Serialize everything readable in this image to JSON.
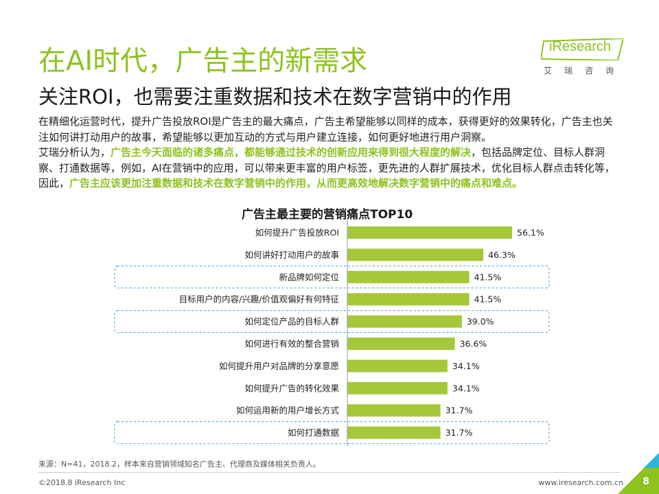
{
  "header": {
    "title": "在AI时代，广告主的新需求",
    "subtitle": "关注ROI，也需要注重数据和技术在数字营销中的作用"
  },
  "logo": {
    "brand": "iResearch",
    "cn": "艾瑞咨询"
  },
  "body": {
    "p1": "在精细化运营时代，提升广告投放ROI是广告主的最大痛点，广告主希望能够以同样的成本，获得更好的效果转化，广告主也关注如何讲打动用户的故事，希望能够以更加互动的方式与用户建立连接，如何更好地进行用户洞察。",
    "p2_a": "艾瑞分析认为，",
    "p2_hl1": "广告主今天面临的诸多痛点，都能够通过技术的创新应用来得到很大程度的解决",
    "p2_b": "，包括品牌定位、目标人群洞察、打通数据等，例如，AI在营销中的应用，可以带来更丰富的用户标签，更先进的人群扩展技术，优化目标人群点击转化等，因此，",
    "p2_hl2": "广告主应该更加注重数据和技术在数字营销中的作用，从而更高效地解决数字营销中的痛点和难点。"
  },
  "chart_data": {
    "type": "bar",
    "orientation": "horizontal",
    "title": "广告主最主要的营销痛点TOP10",
    "categories": [
      "如何提升广告投放ROI",
      "如何讲好打动用户的故事",
      "新品牌如何定位",
      "目标用户的内容/兴趣/价值观偏好有何特征",
      "如何定位产品的目标人群",
      "如何进行有效的整合营销",
      "如何提升用户对品牌的分享意愿",
      "如何提升广告的转化效果",
      "如何运用新的用户增长方式",
      "如何打通数据"
    ],
    "values": [
      56.1,
      46.3,
      41.5,
      41.5,
      39.0,
      36.6,
      34.1,
      34.1,
      31.7,
      31.7
    ],
    "value_labels": [
      "56.1%",
      "46.3%",
      "41.5%",
      "41.5%",
      "39.0%",
      "36.6%",
      "34.1%",
      "34.1%",
      "31.7%",
      "31.7%"
    ],
    "highlighted": [
      false,
      false,
      true,
      false,
      true,
      false,
      false,
      false,
      false,
      true
    ],
    "xlim": [
      0,
      60
    ],
    "unit": "%",
    "colors": {
      "bar": "#a5c83a",
      "highlight_border": "#3b9ad9",
      "axis": "#999999"
    }
  },
  "footer": {
    "source": "来源：N=41，2018.2，样本来自营销领域知名广告主、代理商及媒体相关负责人。",
    "copyright": "©2018.8 iResearch Inc",
    "url": "www.iresearch.com.cn",
    "page": "8"
  },
  "colors": {
    "accent": "#8dc21f",
    "corner": "#8dc21f",
    "corner_light": "#2fb5d9"
  }
}
